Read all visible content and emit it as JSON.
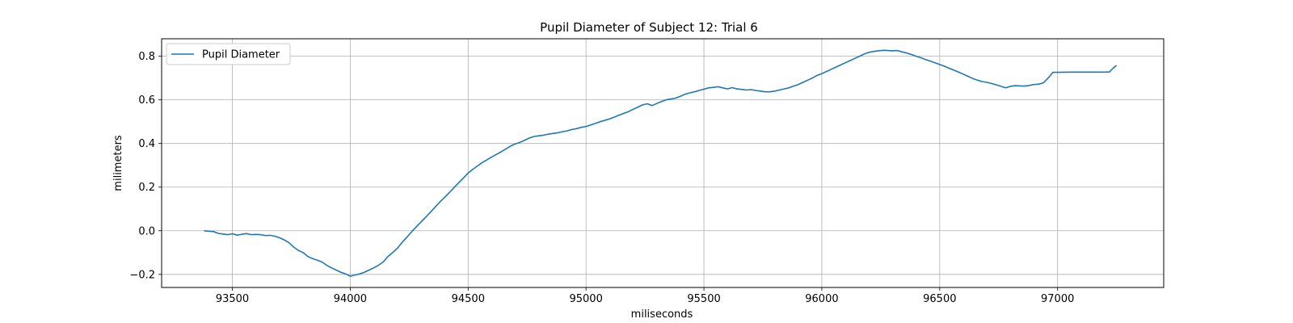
{
  "chart_data": {
    "type": "line",
    "title": "Pupil Diameter of Subject 12: Trial 6",
    "xlabel": "miliseconds",
    "ylabel": "milimeters",
    "xlim": [
      93200,
      97450
    ],
    "ylim": [
      -0.26,
      0.88
    ],
    "xticks": [
      93500,
      94000,
      94500,
      95000,
      95500,
      96000,
      96500,
      97000
    ],
    "yticks": [
      -0.2,
      0.0,
      0.2,
      0.4,
      0.6,
      0.8
    ],
    "xtick_labels": [
      "93500",
      "94000",
      "94500",
      "95000",
      "95500",
      "96000",
      "96500",
      "97000"
    ],
    "ytick_labels": [
      "−0.2",
      "0.0",
      "0.2",
      "0.4",
      "0.6",
      "0.8"
    ],
    "grid": true,
    "legend": {
      "position": "upper-left"
    },
    "series": [
      {
        "name": "Pupil Diameter",
        "color": "#1f77b4",
        "points": [
          [
            93380,
            0.0
          ],
          [
            93400,
            -0.002
          ],
          [
            93420,
            -0.004
          ],
          [
            93440,
            -0.012
          ],
          [
            93460,
            -0.015
          ],
          [
            93480,
            -0.018
          ],
          [
            93500,
            -0.014
          ],
          [
            93520,
            -0.02
          ],
          [
            93540,
            -0.016
          ],
          [
            93560,
            -0.013
          ],
          [
            93580,
            -0.018
          ],
          [
            93600,
            -0.017
          ],
          [
            93620,
            -0.018
          ],
          [
            93640,
            -0.022
          ],
          [
            93660,
            -0.021
          ],
          [
            93680,
            -0.025
          ],
          [
            93700,
            -0.032
          ],
          [
            93720,
            -0.042
          ],
          [
            93740,
            -0.055
          ],
          [
            93760,
            -0.075
          ],
          [
            93780,
            -0.09
          ],
          [
            93800,
            -0.1
          ],
          [
            93820,
            -0.118
          ],
          [
            93840,
            -0.128
          ],
          [
            93860,
            -0.135
          ],
          [
            93880,
            -0.143
          ],
          [
            93900,
            -0.158
          ],
          [
            93920,
            -0.17
          ],
          [
            93940,
            -0.18
          ],
          [
            93960,
            -0.19
          ],
          [
            93980,
            -0.198
          ],
          [
            94000,
            -0.208
          ],
          [
            94020,
            -0.203
          ],
          [
            94040,
            -0.198
          ],
          [
            94060,
            -0.19
          ],
          [
            94080,
            -0.18
          ],
          [
            94100,
            -0.17
          ],
          [
            94120,
            -0.158
          ],
          [
            94140,
            -0.143
          ],
          [
            94160,
            -0.118
          ],
          [
            94180,
            -0.1
          ],
          [
            94200,
            -0.08
          ],
          [
            94220,
            -0.053
          ],
          [
            94240,
            -0.03
          ],
          [
            94260,
            -0.005
          ],
          [
            94280,
            0.018
          ],
          [
            94300,
            0.04
          ],
          [
            94320,
            0.062
          ],
          [
            94340,
            0.085
          ],
          [
            94360,
            0.108
          ],
          [
            94380,
            0.132
          ],
          [
            94400,
            0.153
          ],
          [
            94420,
            0.175
          ],
          [
            94440,
            0.198
          ],
          [
            94460,
            0.22
          ],
          [
            94480,
            0.242
          ],
          [
            94500,
            0.265
          ],
          [
            94520,
            0.282
          ],
          [
            94540,
            0.297
          ],
          [
            94560,
            0.313
          ],
          [
            94580,
            0.325
          ],
          [
            94600,
            0.338
          ],
          [
            94620,
            0.35
          ],
          [
            94640,
            0.362
          ],
          [
            94660,
            0.375
          ],
          [
            94680,
            0.388
          ],
          [
            94700,
            0.398
          ],
          [
            94720,
            0.405
          ],
          [
            94740,
            0.415
          ],
          [
            94760,
            0.425
          ],
          [
            94780,
            0.432
          ],
          [
            94800,
            0.435
          ],
          [
            94820,
            0.438
          ],
          [
            94840,
            0.443
          ],
          [
            94860,
            0.446
          ],
          [
            94880,
            0.449
          ],
          [
            94900,
            0.454
          ],
          [
            94920,
            0.458
          ],
          [
            94940,
            0.464
          ],
          [
            94960,
            0.468
          ],
          [
            94980,
            0.474
          ],
          [
            95000,
            0.478
          ],
          [
            95020,
            0.485
          ],
          [
            95040,
            0.492
          ],
          [
            95060,
            0.5
          ],
          [
            95080,
            0.506
          ],
          [
            95100,
            0.513
          ],
          [
            95120,
            0.521
          ],
          [
            95140,
            0.53
          ],
          [
            95160,
            0.538
          ],
          [
            95180,
            0.546
          ],
          [
            95200,
            0.557
          ],
          [
            95220,
            0.567
          ],
          [
            95240,
            0.577
          ],
          [
            95260,
            0.582
          ],
          [
            95280,
            0.574
          ],
          [
            95300,
            0.583
          ],
          [
            95320,
            0.592
          ],
          [
            95340,
            0.6
          ],
          [
            95360,
            0.604
          ],
          [
            95380,
            0.608
          ],
          [
            95400,
            0.616
          ],
          [
            95420,
            0.626
          ],
          [
            95440,
            0.632
          ],
          [
            95460,
            0.637
          ],
          [
            95480,
            0.643
          ],
          [
            95500,
            0.649
          ],
          [
            95520,
            0.655
          ],
          [
            95540,
            0.657
          ],
          [
            95560,
            0.66
          ],
          [
            95580,
            0.655
          ],
          [
            95600,
            0.65
          ],
          [
            95620,
            0.656
          ],
          [
            95640,
            0.65
          ],
          [
            95660,
            0.648
          ],
          [
            95680,
            0.645
          ],
          [
            95700,
            0.647
          ],
          [
            95720,
            0.643
          ],
          [
            95740,
            0.64
          ],
          [
            95760,
            0.637
          ],
          [
            95780,
            0.637
          ],
          [
            95800,
            0.64
          ],
          [
            95820,
            0.645
          ],
          [
            95840,
            0.65
          ],
          [
            95860,
            0.655
          ],
          [
            95880,
            0.663
          ],
          [
            95900,
            0.67
          ],
          [
            95920,
            0.68
          ],
          [
            95940,
            0.69
          ],
          [
            95960,
            0.7
          ],
          [
            95980,
            0.712
          ],
          [
            96000,
            0.72
          ],
          [
            96020,
            0.73
          ],
          [
            96040,
            0.74
          ],
          [
            96060,
            0.75
          ],
          [
            96080,
            0.76
          ],
          [
            96100,
            0.77
          ],
          [
            96120,
            0.78
          ],
          [
            96140,
            0.79
          ],
          [
            96160,
            0.8
          ],
          [
            96180,
            0.81
          ],
          [
            96200,
            0.818
          ],
          [
            96220,
            0.822
          ],
          [
            96240,
            0.825
          ],
          [
            96260,
            0.827
          ],
          [
            96280,
            0.826
          ],
          [
            96300,
            0.825
          ],
          [
            96320,
            0.826
          ],
          [
            96340,
            0.82
          ],
          [
            96360,
            0.815
          ],
          [
            96380,
            0.808
          ],
          [
            96400,
            0.8
          ],
          [
            96420,
            0.793
          ],
          [
            96440,
            0.785
          ],
          [
            96460,
            0.778
          ],
          [
            96480,
            0.77
          ],
          [
            96500,
            0.762
          ],
          [
            96520,
            0.754
          ],
          [
            96540,
            0.745
          ],
          [
            96560,
            0.736
          ],
          [
            96580,
            0.727
          ],
          [
            96600,
            0.718
          ],
          [
            96620,
            0.708
          ],
          [
            96640,
            0.698
          ],
          [
            96660,
            0.69
          ],
          [
            96680,
            0.684
          ],
          [
            96700,
            0.68
          ],
          [
            96720,
            0.675
          ],
          [
            96740,
            0.669
          ],
          [
            96760,
            0.662
          ],
          [
            96780,
            0.655
          ],
          [
            96800,
            0.662
          ],
          [
            96820,
            0.665
          ],
          [
            96840,
            0.664
          ],
          [
            96860,
            0.663
          ],
          [
            96880,
            0.666
          ],
          [
            96900,
            0.67
          ],
          [
            96920,
            0.672
          ],
          [
            96940,
            0.678
          ],
          [
            96960,
            0.7
          ],
          [
            96980,
            0.726
          ],
          [
            97000,
            0.726
          ],
          [
            97050,
            0.727
          ],
          [
            97100,
            0.727
          ],
          [
            97150,
            0.727
          ],
          [
            97200,
            0.727
          ],
          [
            97220,
            0.728
          ],
          [
            97235,
            0.745
          ],
          [
            97250,
            0.758
          ]
        ]
      }
    ]
  }
}
